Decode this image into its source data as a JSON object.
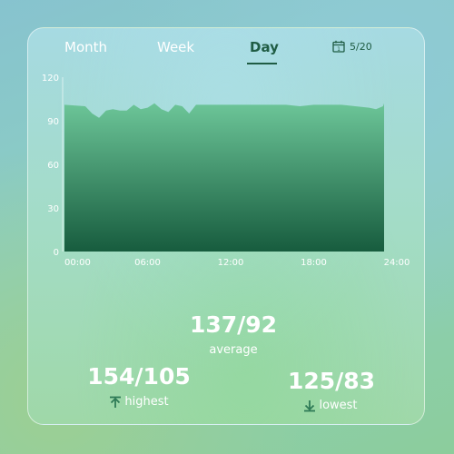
{
  "tabs": [
    {
      "label": "Month",
      "active": false
    },
    {
      "label": "Week",
      "active": false
    },
    {
      "label": "Day",
      "active": true
    }
  ],
  "date": {
    "label": "5/20",
    "icon": "calendar-icon"
  },
  "chart_data": {
    "type": "area",
    "x_ticks": [
      "00:00",
      "06:00",
      "12:00",
      "18:00",
      "24:00"
    ],
    "y_ticks": [
      "0",
      "30",
      "60",
      "90",
      "120"
    ],
    "ylim": [
      0,
      120
    ],
    "xlim": [
      0,
      24
    ],
    "grid": false,
    "series": [
      {
        "x": [
          0,
          1.5,
          2.0,
          2.5,
          3.0,
          3.5,
          4.0,
          4.5,
          5.0,
          5.5,
          6.0,
          6.5,
          7.0,
          7.5,
          8.0,
          8.5,
          9.0,
          9.5,
          10,
          11,
          12,
          13,
          14,
          15,
          16,
          17,
          18,
          19,
          20,
          21,
          22,
          22.5,
          23,
          23.5,
          24
        ],
        "values": [
          101,
          100,
          95,
          92,
          97,
          98,
          97,
          97,
          101,
          98,
          99,
          102,
          98,
          96,
          101,
          100,
          95,
          101,
          101,
          101,
          101,
          101,
          101,
          101,
          101,
          100,
          101,
          101,
          101,
          100,
          99,
          98,
          100,
          102,
          100
        ]
      }
    ],
    "colors": {
      "top": "#6cc598",
      "bottom": "#175c3e"
    }
  },
  "stats": {
    "average": {
      "value": "137/92",
      "label": "average"
    },
    "highest": {
      "value": "154/105",
      "label": "highest",
      "icon": "arrow-up-icon"
    },
    "lowest": {
      "value": "125/83",
      "label": "lowest",
      "icon": "arrow-down-icon"
    }
  }
}
